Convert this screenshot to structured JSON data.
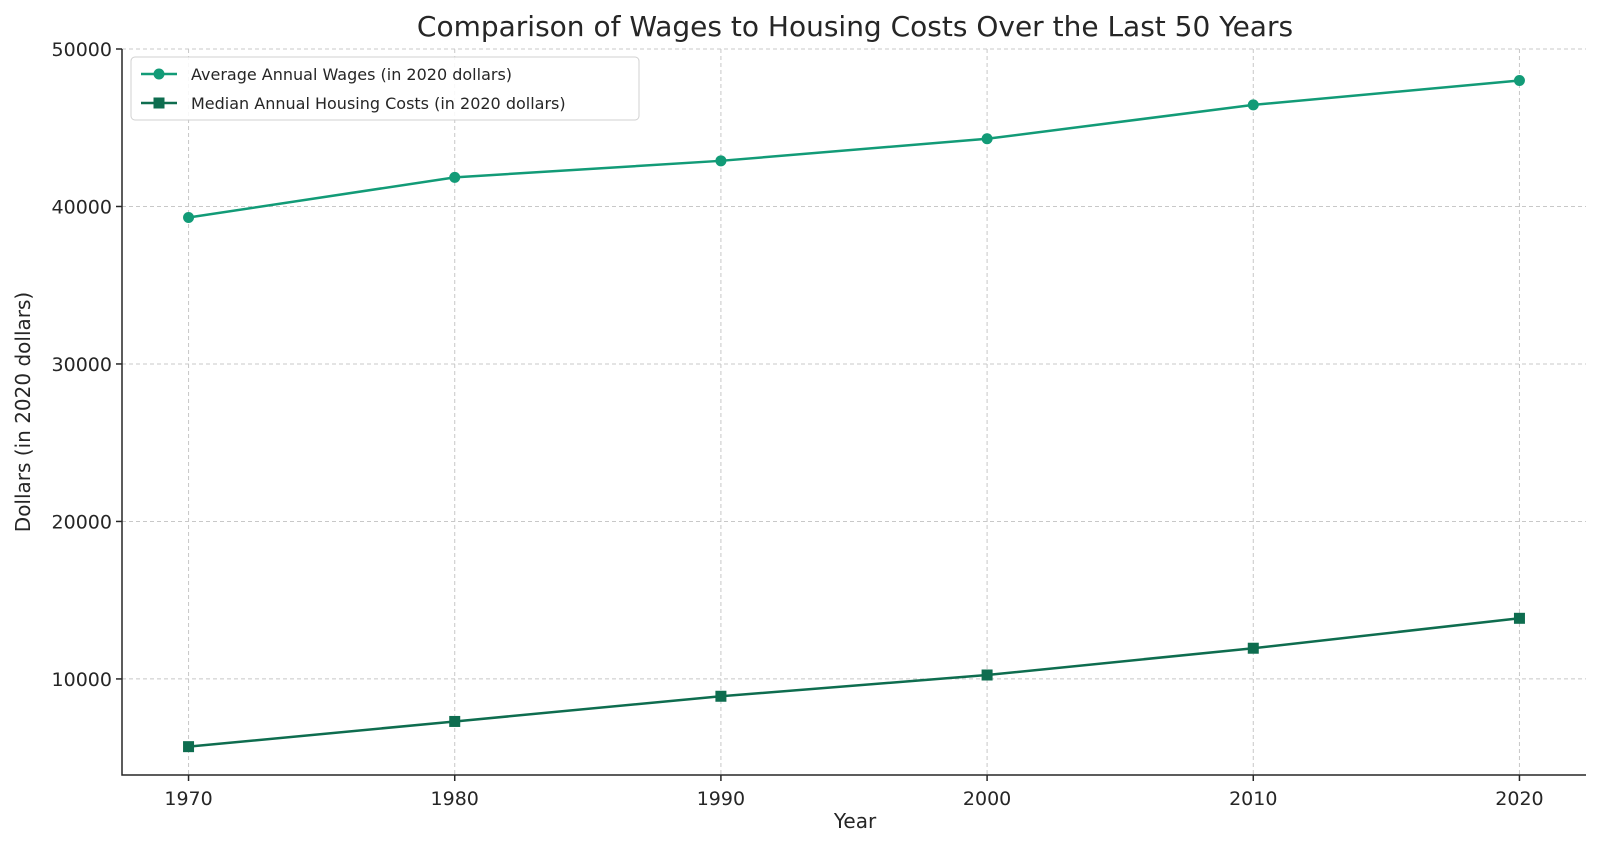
{
  "colors": {
    "wages": "#129b77",
    "housing": "#0e6d4f"
  },
  "chart_data": {
    "type": "line",
    "title": "Comparison of Wages to Housing Costs Over the Last 50 Years",
    "xlabel": "Year",
    "ylabel": "Dollars (in 2020 dollars)",
    "x": [
      1970,
      1980,
      1990,
      2000,
      2010,
      2020
    ],
    "xlim": [
      1967.5,
      2022.5
    ],
    "ylim": [
      3900,
      50000
    ],
    "xticks": [
      1970,
      1980,
      1990,
      2000,
      2010,
      2020
    ],
    "yticks": [
      10000,
      20000,
      30000,
      40000,
      50000
    ],
    "grid": true,
    "legend": "top-left",
    "series": [
      {
        "name": "Average Annual Wages (in 2020 dollars)",
        "marker": "circle",
        "values": [
          39300,
          41850,
          42900,
          44300,
          46450,
          48000
        ]
      },
      {
        "name": "Median Annual Housing Costs (in 2020 dollars)",
        "marker": "square",
        "values": [
          5700,
          7300,
          8900,
          10250,
          11950,
          13850
        ]
      }
    ]
  }
}
